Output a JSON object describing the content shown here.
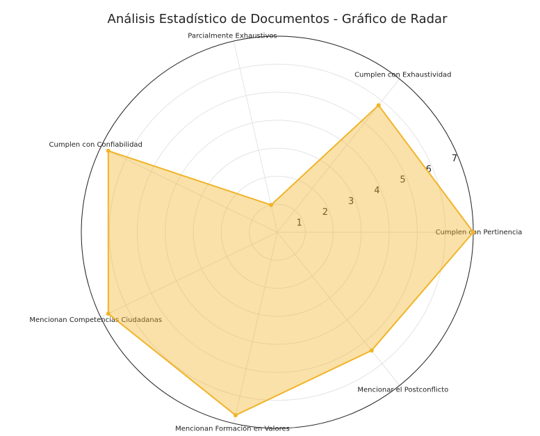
{
  "chart_data": {
    "type": "radar",
    "title": "Análisis Estadístico de Documentos - Gráfico de Radar",
    "categories": [
      "Cumplen con Pertinencia",
      "Cumplen con Exhaustividad",
      "Parcialmente Exhaustivos",
      "Cumplen con Confiabilidad",
      "Mencionan Competencias Ciudadanas",
      "Mencionan Formación en Valores",
      "Mencionar el Postconflicto"
    ],
    "values": [
      7,
      5.8,
      1,
      6.7,
      6.7,
      6.7,
      5.4
    ],
    "color": "#f0b429",
    "ylim": [
      0,
      7
    ],
    "yticks": [
      1,
      2,
      3,
      4,
      5,
      6,
      7
    ],
    "grid": true
  }
}
